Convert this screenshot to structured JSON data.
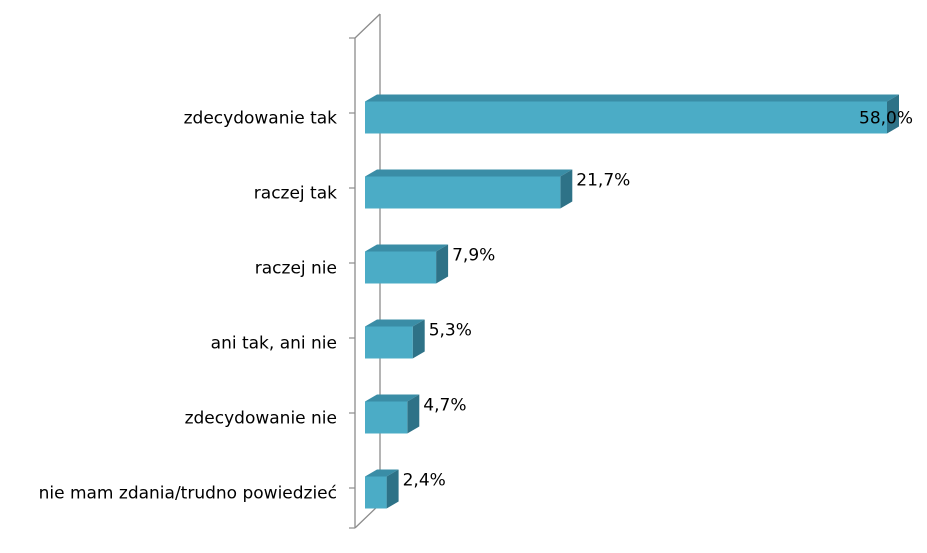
{
  "chart_data": {
    "type": "bar",
    "orientation": "horizontal",
    "style": "3d",
    "categories": [
      "zdecydowanie tak",
      "raczej tak",
      "raczej nie",
      "ani tak, ani nie",
      "zdecydowanie nie",
      "nie mam zdania/trudno powiedzieć"
    ],
    "values": [
      58.0,
      21.7,
      7.9,
      5.3,
      4.7,
      2.4
    ],
    "value_labels": [
      "58,0%",
      "21,7%",
      "7,9%",
      "5,3%",
      "4,7%",
      "2,4%"
    ],
    "unit": "%",
    "xlim": [
      0,
      60
    ],
    "grid": false,
    "legend": "none",
    "colors": {
      "bar_front": "#4BACC6",
      "bar_top": "#3A8DA6",
      "bar_side": "#2E7287",
      "axis": "#8C8C8C",
      "text": "#000000"
    }
  }
}
